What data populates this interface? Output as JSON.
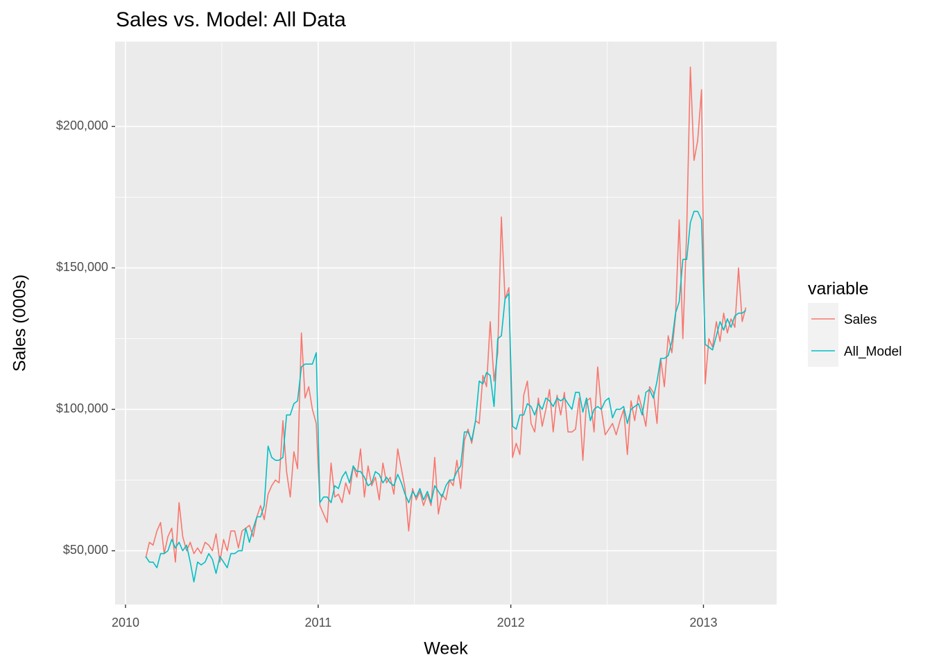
{
  "chart_data": {
    "type": "line",
    "title": "Sales vs. Model: All Data",
    "x_label": "Week",
    "y_label": "Sales  (000s)",
    "legend_title": "variable",
    "legend_position": "right",
    "grid": true,
    "xlim": [
      2009.946,
      2013.38
    ],
    "ylim": [
      31000,
      230000
    ],
    "xticks": [
      2010,
      2011,
      2012,
      2013
    ],
    "xminor": [
      2010.5,
      2011.5,
      2012.5
    ],
    "yticks": [
      {
        "value": 50000,
        "label": "$50,000"
      },
      {
        "value": 100000,
        "label": "$100,000"
      },
      {
        "value": 150000,
        "label": "$150,000"
      },
      {
        "value": 200000,
        "label": "$200,000"
      }
    ],
    "yminor": [
      75000,
      125000,
      175000
    ],
    "x": [
      2010.105,
      2010.124,
      2010.143,
      2010.163,
      2010.182,
      2010.201,
      2010.22,
      2010.24,
      2010.259,
      2010.278,
      2010.297,
      2010.317,
      2010.336,
      2010.355,
      2010.374,
      2010.393,
      2010.413,
      2010.432,
      2010.451,
      2010.47,
      2010.49,
      2010.509,
      2010.528,
      2010.547,
      2010.567,
      2010.586,
      2010.605,
      2010.624,
      2010.643,
      2010.663,
      2010.682,
      2010.701,
      2010.72,
      2010.74,
      2010.759,
      2010.778,
      2010.797,
      2010.817,
      2010.836,
      2010.855,
      2010.874,
      2010.893,
      2010.913,
      2010.932,
      2010.951,
      2010.97,
      2010.99,
      2011.009,
      2011.028,
      2011.047,
      2011.067,
      2011.086,
      2011.105,
      2011.124,
      2011.143,
      2011.163,
      2011.182,
      2011.201,
      2011.22,
      2011.24,
      2011.259,
      2011.278,
      2011.297,
      2011.317,
      2011.336,
      2011.355,
      2011.374,
      2011.393,
      2011.413,
      2011.432,
      2011.451,
      2011.47,
      2011.49,
      2011.509,
      2011.528,
      2011.547,
      2011.567,
      2011.586,
      2011.605,
      2011.624,
      2011.643,
      2011.663,
      2011.682,
      2011.701,
      2011.72,
      2011.74,
      2011.759,
      2011.778,
      2011.797,
      2011.817,
      2011.836,
      2011.855,
      2011.874,
      2011.893,
      2011.913,
      2011.932,
      2011.951,
      2011.97,
      2011.99,
      2012.009,
      2012.028,
      2012.047,
      2012.067,
      2012.086,
      2012.105,
      2012.124,
      2012.143,
      2012.163,
      2012.182,
      2012.201,
      2012.22,
      2012.24,
      2012.259,
      2012.278,
      2012.297,
      2012.317,
      2012.336,
      2012.355,
      2012.374,
      2012.393,
      2012.413,
      2012.432,
      2012.451,
      2012.47,
      2012.49,
      2012.509,
      2012.528,
      2012.547,
      2012.567,
      2012.586,
      2012.605,
      2012.624,
      2012.643,
      2012.663,
      2012.682,
      2012.701,
      2012.72,
      2012.74,
      2012.759,
      2012.778,
      2012.797,
      2012.817,
      2012.836,
      2012.855,
      2012.874,
      2012.893,
      2012.913,
      2012.932,
      2012.951,
      2012.97,
      2012.99,
      2013.009,
      2013.028,
      2013.047,
      2013.067,
      2013.086,
      2013.105,
      2013.124,
      2013.143,
      2013.163,
      2013.182,
      2013.201,
      2013.22
    ],
    "series": [
      {
        "name": "Sales",
        "color": "#F8766D",
        "values": [
          47500,
          53000,
          52000,
          57000,
          60000,
          49000,
          55000,
          58000,
          46000,
          67000,
          55000,
          50000,
          53000,
          49000,
          51000,
          49000,
          53000,
          52000,
          50000,
          56000,
          46000,
          54000,
          50000,
          57000,
          57000,
          51000,
          57000,
          58000,
          59000,
          55000,
          62000,
          66000,
          61000,
          70000,
          73000,
          75000,
          74000,
          96000,
          78000,
          69000,
          85000,
          79000,
          127000,
          104000,
          108000,
          100000,
          95000,
          66000,
          63000,
          60000,
          81000,
          69000,
          70000,
          67000,
          74000,
          70000,
          80000,
          76000,
          86000,
          69000,
          80000,
          73000,
          76000,
          68000,
          81000,
          74000,
          76000,
          70000,
          86000,
          79000,
          72000,
          57000,
          72000,
          68000,
          71000,
          66000,
          70000,
          66000,
          83000,
          63000,
          70000,
          68000,
          75000,
          73000,
          82000,
          72000,
          89000,
          93000,
          88000,
          96000,
          95000,
          112000,
          108000,
          131000,
          110000,
          120000,
          168000,
          139000,
          143000,
          83000,
          88000,
          84000,
          105000,
          110000,
          95000,
          92000,
          104000,
          94000,
          100000,
          107000,
          92000,
          105000,
          98000,
          106000,
          92000,
          92000,
          93000,
          104000,
          82000,
          103000,
          104000,
          92000,
          115000,
          100000,
          91000,
          93000,
          95000,
          91000,
          96000,
          100000,
          84000,
          103000,
          96000,
          105000,
          100000,
          94000,
          108000,
          106000,
          95000,
          118000,
          108000,
          126000,
          120000,
          133000,
          167000,
          125000,
          163000,
          221000,
          188000,
          195000,
          213000,
          109000,
          125000,
          122000,
          131000,
          124000,
          134000,
          127000,
          132000,
          129000,
          150000,
          131000,
          136000
        ]
      },
      {
        "name": "All_Model",
        "color": "#00BFC4",
        "values": [
          48000,
          46000,
          46000,
          44000,
          49000,
          49000,
          50000,
          54000,
          51000,
          53000,
          50000,
          52000,
          46000,
          39000,
          46000,
          45000,
          46000,
          49000,
          47000,
          42000,
          48000,
          46000,
          44000,
          49000,
          49000,
          50000,
          50000,
          58000,
          53000,
          58000,
          62000,
          62000,
          66000,
          87000,
          83000,
          82000,
          82000,
          83000,
          98000,
          98000,
          102000,
          103000,
          115000,
          116000,
          116000,
          116000,
          120000,
          67000,
          69000,
          69000,
          67000,
          73000,
          72000,
          76000,
          78000,
          74000,
          80000,
          78000,
          78000,
          76000,
          73000,
          74000,
          78000,
          77000,
          74000,
          76000,
          74000,
          73000,
          77000,
          74000,
          70000,
          67000,
          71000,
          69000,
          72000,
          68000,
          71000,
          67000,
          73000,
          71000,
          69000,
          73000,
          75000,
          75000,
          78000,
          80000,
          92000,
          92000,
          89000,
          96000,
          110000,
          109000,
          113000,
          112000,
          101000,
          125000,
          126000,
          139000,
          141000,
          94000,
          93000,
          98000,
          98000,
          102000,
          101000,
          98000,
          102000,
          100000,
          104000,
          103000,
          101000,
          104000,
          103000,
          104000,
          102000,
          100000,
          106000,
          106000,
          99000,
          104000,
          96000,
          100000,
          101000,
          100000,
          103000,
          104000,
          97000,
          100000,
          100000,
          101000,
          95000,
          100000,
          101000,
          102000,
          98000,
          106000,
          107000,
          104000,
          110000,
          118000,
          118000,
          119000,
          124000,
          134000,
          138000,
          153000,
          153000,
          166000,
          170000,
          170000,
          167000,
          123000,
          122000,
          121000,
          126000,
          131000,
          128000,
          132000,
          129000,
          133000,
          134000,
          134000,
          135000
        ]
      }
    ]
  }
}
